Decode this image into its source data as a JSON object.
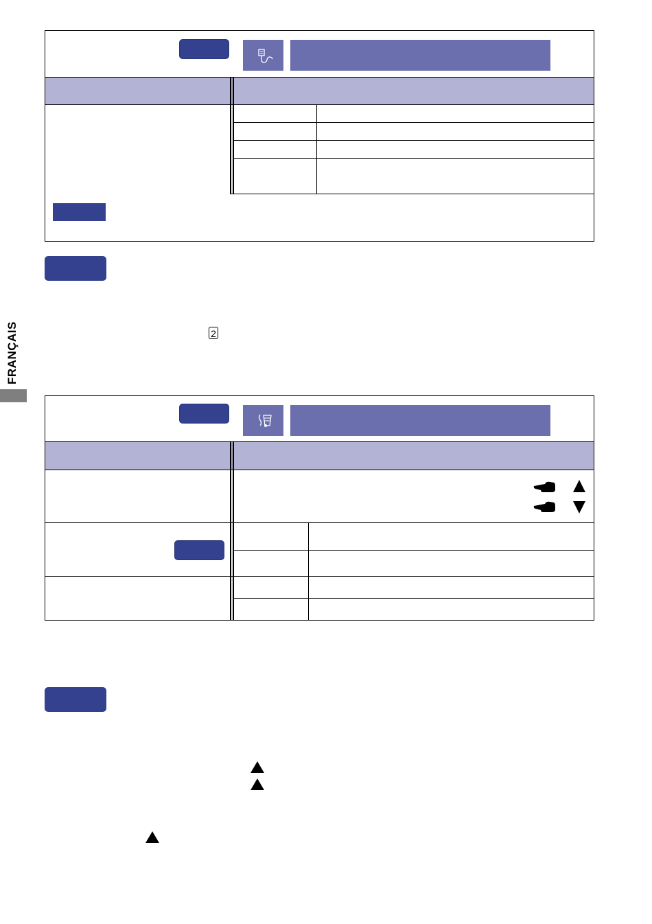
{
  "sidebar": {
    "language_label": "FRANÇAIS"
  },
  "step_marker": {
    "number": "2"
  },
  "icons": {
    "menu1_icon": "input-signal-icon",
    "menu2_icon": "audio-icon",
    "pointer": "pointing-hand-icon",
    "arrow_up": "triangle-up-icon",
    "arrow_down": "triangle-down-icon"
  },
  "colors": {
    "header_band": "#b3b3d6",
    "title_bar": "#6b6fae",
    "tag": "#33418f",
    "side_tab": "#7f7f7f"
  }
}
